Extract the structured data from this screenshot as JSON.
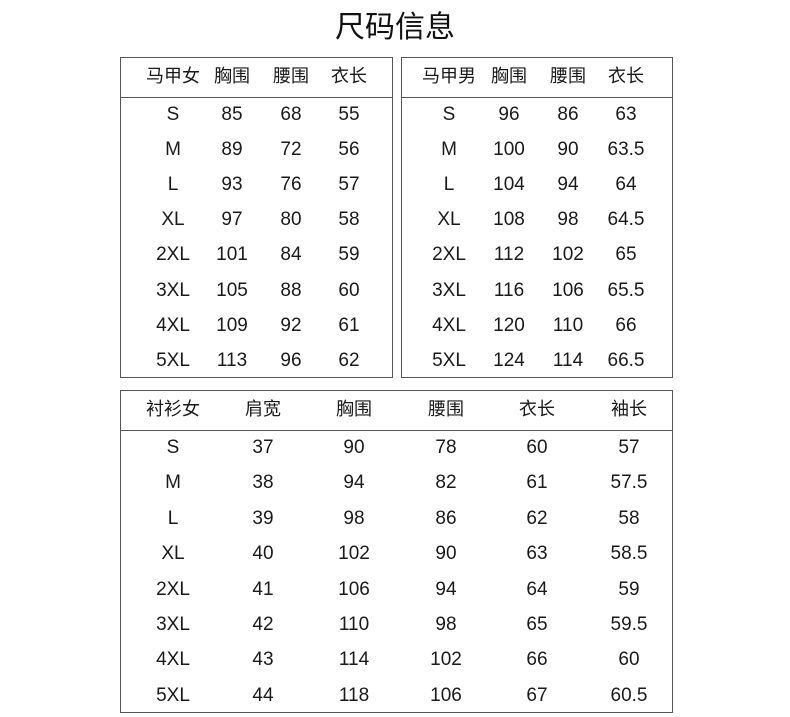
{
  "title": "尺码信息",
  "tables": [
    {
      "headers": [
        "马甲女",
        "胸围",
        "腰围",
        "衣长"
      ],
      "rows": [
        [
          "S",
          "85",
          "68",
          "55"
        ],
        [
          "M",
          "89",
          "72",
          "56"
        ],
        [
          "L",
          "93",
          "76",
          "57"
        ],
        [
          "XL",
          "97",
          "80",
          "58"
        ],
        [
          "2XL",
          "101",
          "84",
          "59"
        ],
        [
          "3XL",
          "105",
          "88",
          "60"
        ],
        [
          "4XL",
          "109",
          "92",
          "61"
        ],
        [
          "5XL",
          "113",
          "96",
          "62"
        ]
      ]
    },
    {
      "headers": [
        "马甲男",
        "胸围",
        "腰围",
        "衣长"
      ],
      "rows": [
        [
          "S",
          "96",
          "86",
          "63"
        ],
        [
          "M",
          "100",
          "90",
          "63.5"
        ],
        [
          "L",
          "104",
          "94",
          "64"
        ],
        [
          "XL",
          "108",
          "98",
          "64.5"
        ],
        [
          "2XL",
          "112",
          "102",
          "65"
        ],
        [
          "3XL",
          "116",
          "106",
          "65.5"
        ],
        [
          "4XL",
          "120",
          "110",
          "66"
        ],
        [
          "5XL",
          "124",
          "114",
          "66.5"
        ]
      ]
    },
    {
      "headers": [
        "衬衫女",
        "肩宽",
        "胸围",
        "腰围",
        "衣长",
        "袖长"
      ],
      "rows": [
        [
          "S",
          "37",
          "90",
          "78",
          "60",
          "57"
        ],
        [
          "M",
          "38",
          "94",
          "82",
          "61",
          "57.5"
        ],
        [
          "L",
          "39",
          "98",
          "86",
          "62",
          "58"
        ],
        [
          "XL",
          "40",
          "102",
          "90",
          "63",
          "58.5"
        ],
        [
          "2XL",
          "41",
          "106",
          "94",
          "64",
          "59"
        ],
        [
          "3XL",
          "42",
          "110",
          "98",
          "65",
          "59.5"
        ],
        [
          "4XL",
          "43",
          "114",
          "102",
          "66",
          "60"
        ],
        [
          "5XL",
          "44",
          "118",
          "106",
          "67",
          "60.5"
        ]
      ]
    }
  ]
}
